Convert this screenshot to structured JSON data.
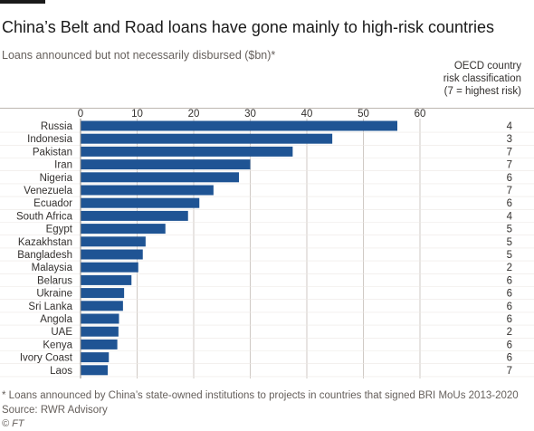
{
  "header": {
    "title": "China’s Belt and Road loans have gone mainly to high-risk countries",
    "subtitle": "Loans announced but not necessarily disbursed ($bn)*"
  },
  "risk_header": {
    "line1": "OECD country",
    "line2": "risk classification",
    "line3": "(7 = highest risk)"
  },
  "footer": {
    "footnote": "* Loans announced by China’s state-owned institutions to projects in countries that signed BRI MoUs 2013-2020",
    "source": "Source: RWR Advisory",
    "credit": "© FT"
  },
  "colors": {
    "bar": "#1f5494",
    "grid": "#cfc9c4",
    "text": "#33302e",
    "muted": "#66605c"
  },
  "chart_data": {
    "type": "bar",
    "orientation": "horizontal",
    "title": "China’s Belt and Road loans have gone mainly to high-risk countries",
    "subtitle": "Loans announced but not necessarily disbursed ($bn)*",
    "xlim": [
      0,
      60
    ],
    "xticks": [
      0,
      10,
      20,
      30,
      40,
      50,
      60
    ],
    "grid": true,
    "categories": [
      "Russia",
      "Indonesia",
      "Pakistan",
      "Iran",
      "Nigeria",
      "Venezuela",
      "Ecuador",
      "South Africa",
      "Egypt",
      "Kazakhstan",
      "Bangladesh",
      "Malaysia",
      "Belarus",
      "Ukraine",
      "Sri Lanka",
      "Angola",
      "UAE",
      "Kenya",
      "Ivory Coast",
      "Laos"
    ],
    "values": [
      56,
      44.5,
      37.5,
      30,
      28,
      23.5,
      21,
      19,
      15,
      11.5,
      11,
      10.2,
      9,
      7.7,
      7.5,
      6.8,
      6.7,
      6.5,
      5,
      4.8
    ],
    "risk_classification": [
      "4",
      "3",
      "7",
      "7",
      "6",
      "7",
      "6",
      "4",
      "5",
      "5",
      "5",
      "2",
      "6",
      "6",
      "6",
      "6",
      "2",
      "6",
      "6",
      "7"
    ]
  }
}
